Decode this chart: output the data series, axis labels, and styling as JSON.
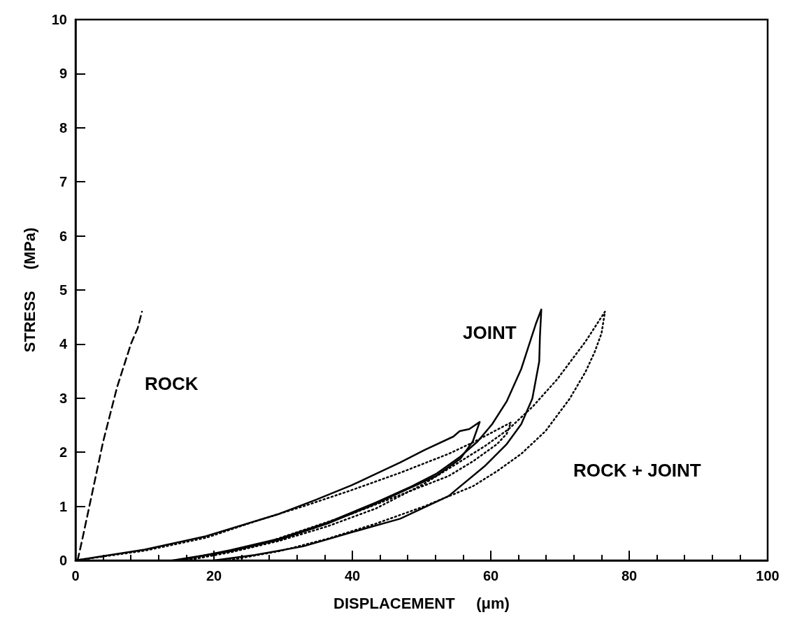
{
  "chart_data": {
    "type": "line",
    "xlabel": "DISPLACEMENT     (μm)",
    "ylabel": "STRESS     (MPa)",
    "xlim": [
      0,
      100
    ],
    "xticks": [
      0,
      20,
      40,
      60,
      80,
      100
    ],
    "ylim": [
      0,
      10
    ],
    "yticks": [
      0,
      1,
      2,
      3,
      4,
      5,
      6,
      7,
      8,
      9,
      10
    ],
    "grid": false,
    "marker": "none",
    "series": [
      {
        "color": "#000000",
        "line_style": "dashed",
        "x": [
          0.3,
          1,
          2,
          3,
          4,
          5,
          6,
          7,
          8,
          9,
          9.6
        ],
        "values": [
          0,
          0.4,
          1.0,
          1.6,
          2.2,
          2.7,
          3.2,
          3.6,
          4.0,
          4.3,
          4.6
        ]
      },
      {
        "color": "#000000",
        "line_style": "solid",
        "x": [
          14,
          22.4,
          29.4,
          36.4,
          43.4,
          49.7,
          52.1,
          55.6,
          57.4,
          58.4,
          56.9,
          55.5,
          54.6,
          50.4,
          46.9,
          43.4,
          39.9,
          34.7,
          29.4,
          18.9,
          10,
          0
        ],
        "values": [
          0,
          0.17,
          0.38,
          0.68,
          1.05,
          1.42,
          1.56,
          1.88,
          2.2,
          2.56,
          2.43,
          2.39,
          2.29,
          2.04,
          1.81,
          1.6,
          1.39,
          1.12,
          0.86,
          0.45,
          0.2,
          0
        ]
      },
      {
        "color": "#000000",
        "line_style": "solid",
        "x": [
          15,
          22.4,
          29.4,
          36.4,
          43.4,
          48.6,
          52.1,
          55.6,
          58.1,
          60.2,
          62.3,
          64.4,
          66.5,
          67.3,
          67.1,
          67.0,
          66.0,
          64.4,
          62.3,
          59.1,
          53.9,
          46.9,
          39.9,
          32.9,
          25.9,
          20
        ],
        "values": [
          0,
          0.19,
          0.4,
          0.7,
          1.07,
          1.37,
          1.6,
          1.92,
          2.2,
          2.52,
          2.94,
          3.54,
          4.37,
          4.64,
          4.14,
          3.68,
          2.99,
          2.52,
          2.15,
          1.74,
          1.19,
          0.77,
          0.52,
          0.26,
          0.1,
          0
        ]
      },
      {
        "color": "#000000",
        "line_style": "dotted",
        "x": [
          16,
          25.9,
          32.9,
          39.9,
          46.9,
          53.9,
          57.4,
          60.9,
          62.3,
          62.9,
          57.4,
          53.9,
          46.9,
          39.9,
          32.9,
          25.9,
          18.9,
          10,
          0
        ],
        "values": [
          0,
          0.26,
          0.56,
          0.86,
          1.21,
          1.56,
          1.83,
          2.15,
          2.34,
          2.55,
          2.18,
          1.97,
          1.62,
          1.3,
          1.0,
          0.72,
          0.42,
          0.18,
          0
        ]
      },
      {
        "color": "#000000",
        "line_style": "dotted",
        "x": [
          16,
          22.4,
          29.4,
          36.4,
          43.4,
          50.4,
          55.6,
          59.1,
          62.6,
          66.1,
          69.6,
          73.7,
          76.5,
          76.0,
          75.0,
          73.7,
          71.4,
          67.9,
          64.4,
          60.9,
          57.4,
          50.4,
          43.4,
          36.4,
          29.4,
          22
        ],
        "values": [
          0,
          0.15,
          0.36,
          0.63,
          0.96,
          1.42,
          1.83,
          2.11,
          2.43,
          2.85,
          3.35,
          4.05,
          4.6,
          4.2,
          3.85,
          3.49,
          2.99,
          2.39,
          1.97,
          1.65,
          1.37,
          1.0,
          0.68,
          0.4,
          0.17,
          0
        ]
      }
    ],
    "annotations": [
      "ROCK",
      "JOINT",
      "ROCK + JOINT"
    ]
  }
}
